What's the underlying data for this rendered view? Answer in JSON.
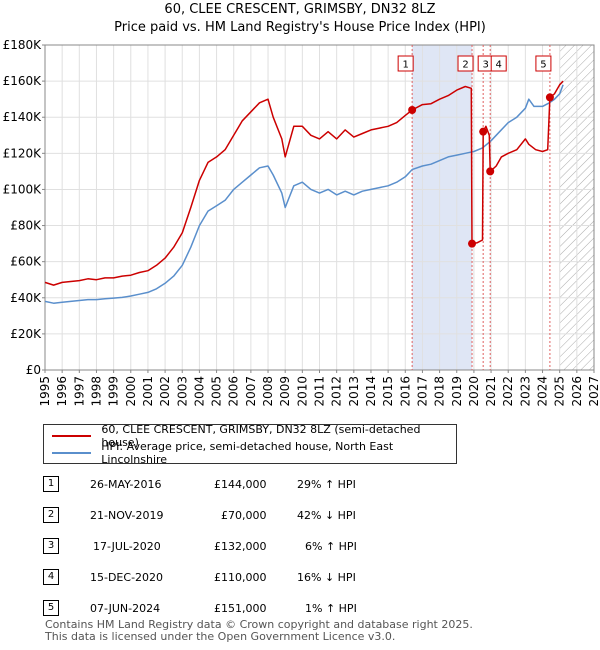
{
  "title_line1": "60, CLEE CRESCENT, GRIMSBY, DN32 8LZ",
  "title_line2": "Price paid vs. HM Land Registry's House Price Index (HPI)",
  "chart_data": {
    "type": "line",
    "xlim": [
      1995,
      2027
    ],
    "ylim": [
      0,
      180000
    ],
    "y_ticks": [
      0,
      20000,
      40000,
      60000,
      80000,
      100000,
      120000,
      140000,
      160000,
      180000
    ],
    "y_tick_labels": [
      "£0",
      "£20K",
      "£40K",
      "£60K",
      "£80K",
      "£100K",
      "£120K",
      "£140K",
      "£160K",
      "£180K"
    ],
    "x_ticks": [
      1995,
      1996,
      1997,
      1998,
      1999,
      2000,
      2001,
      2002,
      2003,
      2004,
      2005,
      2006,
      2007,
      2008,
      2009,
      2010,
      2011,
      2012,
      2013,
      2014,
      2015,
      2016,
      2017,
      2018,
      2019,
      2020,
      2021,
      2022,
      2023,
      2024,
      2025,
      2026,
      2027
    ],
    "grid": true,
    "hatch_from": 2025.0,
    "shaded_band": [
      2016.4,
      2019.9
    ],
    "series": [
      {
        "name": "60, CLEE CRESCENT, GRIMSBY, DN32 8LZ (semi-detached house)",
        "color": "#cc0000",
        "points": [
          [
            1995,
            48500
          ],
          [
            1995.5,
            47000
          ],
          [
            1996,
            48500
          ],
          [
            1996.5,
            49000
          ],
          [
            1997,
            49500
          ],
          [
            1997.5,
            50500
          ],
          [
            1998,
            50000
          ],
          [
            1998.5,
            51000
          ],
          [
            1999,
            51000
          ],
          [
            1999.5,
            52000
          ],
          [
            2000,
            52500
          ],
          [
            2000.5,
            54000
          ],
          [
            2001,
            55000
          ],
          [
            2001.5,
            58000
          ],
          [
            2002,
            62000
          ],
          [
            2002.5,
            68000
          ],
          [
            2003,
            76000
          ],
          [
            2003.5,
            90000
          ],
          [
            2004,
            105000
          ],
          [
            2004.5,
            115000
          ],
          [
            2005,
            118000
          ],
          [
            2005.5,
            122000
          ],
          [
            2006,
            130000
          ],
          [
            2006.5,
            138000
          ],
          [
            2007,
            143000
          ],
          [
            2007.5,
            148000
          ],
          [
            2008,
            150000
          ],
          [
            2008.3,
            140000
          ],
          [
            2008.8,
            128000
          ],
          [
            2009,
            118000
          ],
          [
            2009.5,
            135000
          ],
          [
            2010,
            135000
          ],
          [
            2010.5,
            130000
          ],
          [
            2011,
            128000
          ],
          [
            2011.5,
            132000
          ],
          [
            2012,
            128000
          ],
          [
            2012.5,
            133000
          ],
          [
            2013,
            129000
          ],
          [
            2013.5,
            131000
          ],
          [
            2014,
            133000
          ],
          [
            2014.5,
            134000
          ],
          [
            2015,
            135000
          ],
          [
            2015.5,
            137000
          ],
          [
            2016,
            141000
          ],
          [
            2016.4,
            144000
          ],
          [
            2017,
            147000
          ],
          [
            2017.5,
            147500
          ],
          [
            2018,
            150000
          ],
          [
            2018.5,
            152000
          ],
          [
            2019,
            155000
          ],
          [
            2019.5,
            157000
          ],
          [
            2019.85,
            156000
          ],
          [
            2019.89,
            70000
          ],
          [
            2020.2,
            70500
          ],
          [
            2020.5,
            72000
          ],
          [
            2020.54,
            132000
          ],
          [
            2020.7,
            135000
          ],
          [
            2020.9,
            130000
          ],
          [
            2020.95,
            110000
          ],
          [
            2021.3,
            113000
          ],
          [
            2021.6,
            118000
          ],
          [
            2022,
            120000
          ],
          [
            2022.5,
            122000
          ],
          [
            2023,
            128000
          ],
          [
            2023.2,
            125000
          ],
          [
            2023.6,
            122000
          ],
          [
            2024,
            121000
          ],
          [
            2024.3,
            122000
          ],
          [
            2024.43,
            151000
          ],
          [
            2024.7,
            153000
          ],
          [
            2025,
            158000
          ],
          [
            2025.2,
            160000
          ]
        ]
      },
      {
        "name": "HPI: Average price, semi-detached house, North East Lincolnshire",
        "color": "#5a8fcc",
        "points": [
          [
            1995,
            38000
          ],
          [
            1995.5,
            37000
          ],
          [
            1996,
            37500
          ],
          [
            1996.5,
            38000
          ],
          [
            1997,
            38500
          ],
          [
            1997.5,
            39000
          ],
          [
            1998,
            39000
          ],
          [
            1998.5,
            39500
          ],
          [
            1999,
            39800
          ],
          [
            1999.5,
            40200
          ],
          [
            2000,
            41000
          ],
          [
            2000.5,
            42000
          ],
          [
            2001,
            43000
          ],
          [
            2001.5,
            45000
          ],
          [
            2002,
            48000
          ],
          [
            2002.5,
            52000
          ],
          [
            2003,
            58000
          ],
          [
            2003.5,
            68000
          ],
          [
            2004,
            80000
          ],
          [
            2004.5,
            88000
          ],
          [
            2005,
            91000
          ],
          [
            2005.5,
            94000
          ],
          [
            2006,
            100000
          ],
          [
            2006.5,
            104000
          ],
          [
            2007,
            108000
          ],
          [
            2007.5,
            112000
          ],
          [
            2008,
            113000
          ],
          [
            2008.3,
            108000
          ],
          [
            2008.8,
            98000
          ],
          [
            2009,
            90000
          ],
          [
            2009.5,
            102000
          ],
          [
            2010,
            104000
          ],
          [
            2010.5,
            100000
          ],
          [
            2011,
            98000
          ],
          [
            2011.5,
            100000
          ],
          [
            2012,
            97000
          ],
          [
            2012.5,
            99000
          ],
          [
            2013,
            97000
          ],
          [
            2013.5,
            99000
          ],
          [
            2014,
            100000
          ],
          [
            2014.5,
            101000
          ],
          [
            2015,
            102000
          ],
          [
            2015.5,
            104000
          ],
          [
            2016,
            107000
          ],
          [
            2016.4,
            111000
          ],
          [
            2017,
            113000
          ],
          [
            2017.5,
            114000
          ],
          [
            2018,
            116000
          ],
          [
            2018.5,
            118000
          ],
          [
            2019,
            119000
          ],
          [
            2019.5,
            120000
          ],
          [
            2020,
            121000
          ],
          [
            2020.5,
            123000
          ],
          [
            2021,
            127000
          ],
          [
            2021.5,
            132000
          ],
          [
            2022,
            137000
          ],
          [
            2022.5,
            140000
          ],
          [
            2023,
            145000
          ],
          [
            2023.2,
            150000
          ],
          [
            2023.5,
            146000
          ],
          [
            2024,
            146000
          ],
          [
            2024.4,
            148000
          ],
          [
            2024.7,
            150000
          ],
          [
            2025,
            153000
          ],
          [
            2025.2,
            158000
          ]
        ]
      }
    ],
    "sale_markers": [
      {
        "label": "1",
        "x": 2016.4,
        "y": 144000
      },
      {
        "label": "2",
        "x": 2019.89,
        "y": 70000
      },
      {
        "label": "3",
        "x": 2020.54,
        "y": 132000
      },
      {
        "label": "4",
        "x": 2020.95,
        "y": 110000
      },
      {
        "label": "5",
        "x": 2024.43,
        "y": 151000
      }
    ]
  },
  "legend": {
    "items": [
      {
        "label": "60, CLEE CRESCENT, GRIMSBY, DN32 8LZ (semi-detached house)",
        "color": "#cc0000"
      },
      {
        "label": "HPI: Average price, semi-detached house, North East Lincolnshire",
        "color": "#5a8fcc"
      }
    ]
  },
  "sales": [
    {
      "num": "1",
      "date": "26-MAY-2016",
      "price": "£144,000",
      "hpi": "29% ↑ HPI"
    },
    {
      "num": "2",
      "date": "21-NOV-2019",
      "price": "£70,000",
      "hpi": "42% ↓ HPI"
    },
    {
      "num": "3",
      "date": "17-JUL-2020",
      "price": "£132,000",
      "hpi": "6% ↑ HPI"
    },
    {
      "num": "4",
      "date": "15-DEC-2020",
      "price": "£110,000",
      "hpi": "16% ↓ HPI"
    },
    {
      "num": "5",
      "date": "07-JUN-2024",
      "price": "£151,000",
      "hpi": "1% ↑ HPI"
    }
  ],
  "footer": {
    "line1": "Contains HM Land Registry data © Crown copyright and database right 2025.",
    "line2": "This data is licensed under the Open Government Licence v3.0."
  }
}
